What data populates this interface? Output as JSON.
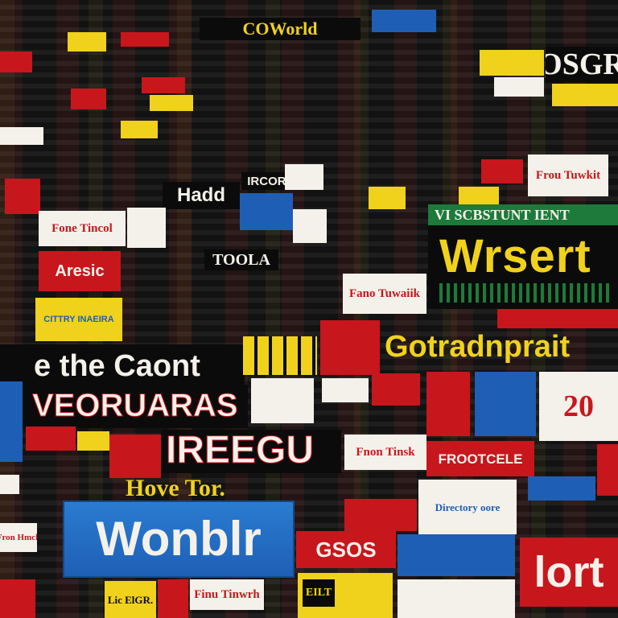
{
  "collage": {
    "headline_top": "COWorld",
    "headline_top_right": "OSGR",
    "right_banner_header": "VI SCBSTUNT IENT",
    "right_banner_word": "Wrsert",
    "mid_right_word": "Gotradnprait",
    "left_the_count": "e the Caont",
    "left_veoruaras": "VEORUARAS",
    "center_ireegu": "IREEGU",
    "lower_left_tagline": "Hove Tor.",
    "bottom_blue_word": "Wonblr",
    "bottom_right_red_word": "lort",
    "aresic": "Aresic",
    "century_box": "CITTRY INAEIRA",
    "price_badge": "20",
    "frootcele": "FROOTCELE",
    "fine_time_1": "Fone Tincol",
    "fine_time_2": "Fano Tuwaiik",
    "fine_time_3": "Frou Tuwkit",
    "fine_time_4": "Fnon Tinsk",
    "fine_time_5": "Finu Tinwrh",
    "fine_time_6": "Fron Hmck",
    "hadd": "Hadd",
    "ircorl": "IRCORL",
    "toola": "TOOLA",
    "directory": "Directory oore",
    "eilt": "EILT",
    "sis": "GSOS",
    "lic": "Lic ElGR."
  },
  "colors": {
    "red": "#c8161d",
    "yellow": "#f0d21c",
    "green": "#1d7a3a",
    "blue": "#1e5fb5",
    "white": "#f4f1ea",
    "black": "#0b0b0b"
  }
}
